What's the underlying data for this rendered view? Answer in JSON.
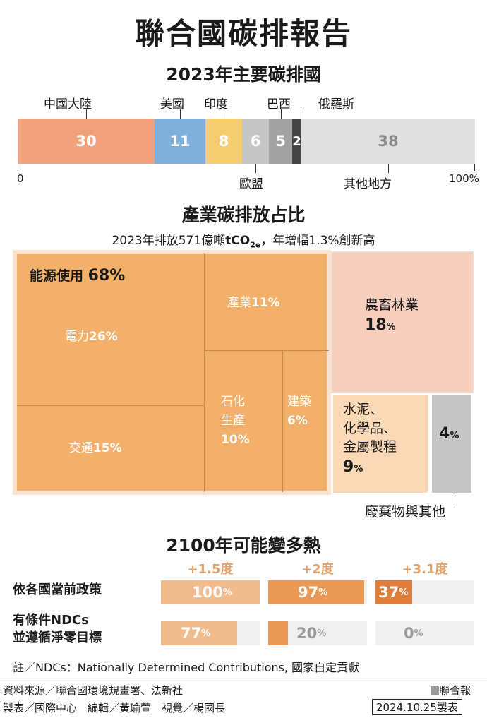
{
  "title": "聯合國碳排報告",
  "section1": {
    "title": "2023年主要碳排國",
    "axis_left": "0",
    "axis_right": "100%"
  },
  "section2": {
    "title": "產業碳排放占比",
    "subtitle_prefix": "2023年排放571億噸",
    "subtitle_unit_main": "tCO",
    "subtitle_unit_sub": "2e",
    "subtitle_suffix": "，年增幅1.3%創新高"
  },
  "section3": {
    "title": "2100年可能變多熱"
  },
  "colors": {
    "china": "#f0a07a",
    "usa": "#7fb0dc",
    "india": "#f4cd6e",
    "eu": "#c6c6c6",
    "brazil": "#a2a2a2",
    "russia": "#444444",
    "other": "#e0e0e0",
    "energy": "#f3b06a",
    "agri": "#f7cfbf",
    "cement": "#fbd9b7",
    "waste": "#c6c6c6",
    "temp_15": "#f1bc8d",
    "temp_2": "#e79955",
    "temp_31": "#de7e3a"
  },
  "chart_data": [
    {
      "type": "bar",
      "title": "2023年主要碳排國",
      "stacked": true,
      "unit": "%",
      "categories": [
        "中國大陸",
        "美國",
        "印度",
        "歐盟",
        "巴西",
        "俄羅斯",
        "其他地方"
      ],
      "values": [
        30,
        11,
        8,
        6,
        5,
        2,
        38
      ],
      "value_labels": [
        "30",
        "11",
        "8",
        "6",
        "5",
        "2",
        "38"
      ],
      "xlim": [
        0,
        100
      ]
    },
    {
      "type": "heatmap",
      "title": "產業碳排放占比",
      "groups": [
        {
          "name": "能源使用",
          "label": "能源使用",
          "pct": "68",
          "value": 68,
          "children": [
            {
              "name": "電力",
              "pct": "26",
              "value": 26
            },
            {
              "name": "交通",
              "pct": "15",
              "value": 15
            },
            {
              "name": "產業",
              "pct": "11",
              "value": 11
            },
            {
              "name": "石化生產",
              "line1": "石化",
              "line2": "生產",
              "pct": "10",
              "value": 10
            },
            {
              "name": "建築",
              "line1": "建築",
              "pct": "6",
              "value": 6
            }
          ]
        },
        {
          "name": "農畜林業",
          "label": "農畜林業",
          "pct": "18",
          "value": 18
        },
        {
          "name": "水泥、化學品、金屬製程",
          "line1": "水泥、",
          "line2": "化學品、",
          "line3": "金屬製程",
          "pct": "9",
          "value": 9
        },
        {
          "name": "廢棄物與其他",
          "label": "廢棄物與其他",
          "pct": "4",
          "value": 4
        }
      ]
    },
    {
      "type": "bar",
      "title": "2100年可能變多熱",
      "unit": "%",
      "categories": [
        "+1.5度",
        "+2度",
        "+3.1度"
      ],
      "series": [
        {
          "name": "依各國當前政策",
          "values": [
            100,
            97,
            37
          ]
        },
        {
          "name": "有條件NDCs並遵循淨零目標",
          "name_line1": "有條件NDCs",
          "name_line2": "並遵循淨零目標",
          "values": [
            77,
            20,
            0
          ]
        }
      ],
      "ylim": [
        0,
        100
      ]
    }
  ],
  "footnote": "註／NDCs：Nationally Determined Contributions, 國家自定貢獻",
  "footer": {
    "source": "資料來源／聯合國環境規畫署、法新社",
    "credits": "製表／國際中心　編輯／黃瑜萱　視覺／楊國長",
    "brand": "聯合報",
    "date": "2024.10.25製表"
  }
}
